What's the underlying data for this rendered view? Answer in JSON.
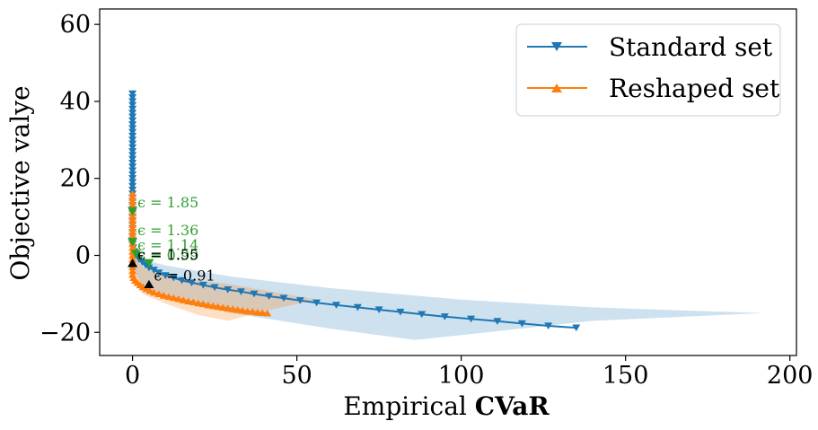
{
  "chart_data": {
    "type": "line",
    "xlabel_prefix": "Empirical",
    "xlabel_bold": "CVaR",
    "ylabel": "Objective valye",
    "xlim": [
      -10,
      202
    ],
    "ylim": [
      -26,
      64
    ],
    "x_ticks": [
      0,
      50,
      100,
      150,
      200
    ],
    "y_ticks": [
      -20,
      0,
      20,
      40,
      60
    ],
    "x_tick_labels": [
      "0",
      "50",
      "100",
      "150",
      "200"
    ],
    "y_tick_labels": [
      "−20",
      "0",
      "20",
      "40",
      "60"
    ],
    "grid": false,
    "legend_position": "top-right",
    "colors": {
      "standard": "#1f77b4",
      "reshaped": "#ff7f0e",
      "green": "#2ca02c",
      "black": "#000000"
    },
    "series": [
      {
        "name": "Standard set",
        "marker": "triangle-down",
        "x": [
          0,
          0,
          0,
          0,
          0,
          0,
          0,
          0,
          0,
          0,
          0,
          0,
          0,
          0,
          0,
          0,
          0,
          0,
          0,
          0,
          0,
          0,
          0,
          0,
          0,
          0,
          0,
          0,
          0,
          0,
          0,
          0,
          0,
          0,
          0,
          0,
          0,
          0,
          0,
          0,
          0.2,
          0.6,
          1.2,
          2,
          3,
          4,
          5,
          6.5,
          8,
          10,
          12.5,
          15,
          18,
          21.5,
          25,
          29,
          33,
          37,
          41.5,
          46,
          51,
          56,
          62,
          68.5,
          75,
          81.5,
          88,
          95,
          103,
          111,
          118.5,
          126.5,
          135
        ],
        "y": [
          42,
          41,
          40,
          39,
          38,
          37,
          36,
          35,
          34,
          33,
          32,
          31,
          30,
          29,
          28,
          27,
          26,
          25,
          24,
          23,
          22,
          21,
          20,
          19,
          18,
          17,
          16,
          15,
          14,
          13,
          12,
          11,
          10,
          9,
          8,
          7,
          6,
          5,
          4,
          3,
          2,
          1,
          0,
          -1,
          -1.8,
          -2.5,
          -3.2,
          -3.8,
          -4.5,
          -5.2,
          -5.8,
          -6.5,
          -7.1,
          -7.7,
          -8.3,
          -8.9,
          -9.4,
          -10,
          -10.6,
          -11.1,
          -11.7,
          -12.3,
          -12.9,
          -13.5,
          -14.1,
          -14.7,
          -15.3,
          -15.9,
          -16.5,
          -17.1,
          -17.7,
          -18.3,
          -18.8
        ]
      },
      {
        "name": "Reshaped set",
        "marker": "triangle-up",
        "x": [
          0,
          0,
          0,
          0,
          0,
          0,
          0,
          0,
          0,
          0,
          0,
          0,
          0,
          0,
          0,
          0,
          0,
          0,
          0,
          0,
          0,
          0,
          0.3,
          0.8,
          1.5,
          2.3,
          3.2,
          4.2,
          5.3,
          6.5,
          8,
          9.5,
          11,
          12.5,
          14,
          15.5,
          17,
          18.5,
          20,
          21.5,
          23,
          24.5,
          26,
          27.5,
          29,
          30.5,
          32,
          33.5,
          35,
          36.5,
          38,
          39.5,
          41
        ],
        "y": [
          16,
          15,
          14,
          13,
          12,
          11,
          10,
          9,
          8,
          7,
          6,
          5,
          4,
          3,
          2,
          1,
          0,
          -1,
          -2,
          -3,
          -4,
          -5,
          -5.8,
          -6.5,
          -7.1,
          -7.7,
          -8.2,
          -8.7,
          -9.2,
          -9.6,
          -10,
          -10.4,
          -10.7,
          -11,
          -11.3,
          -11.6,
          -11.9,
          -12.1,
          -12.4,
          -12.6,
          -12.9,
          -13.1,
          -13.3,
          -13.5,
          -13.7,
          -13.9,
          -14.1,
          -14.3,
          -14.5,
          -14.6,
          -14.8,
          -14.9,
          -15
        ]
      }
    ],
    "bands": [
      {
        "series": "Standard set",
        "x": [
          0,
          0,
          0.3,
          1,
          3,
          10,
          30,
          60,
          100,
          140,
          192,
          140,
          86,
          60,
          30,
          10,
          3,
          1,
          0.3,
          0
        ],
        "y": [
          60,
          40,
          10,
          2,
          -1,
          -2.6,
          -5.5,
          -8.5,
          -11.5,
          -13.5,
          -15,
          -17,
          -22,
          -19,
          -15,
          -11,
          -8,
          -5,
          -2,
          0
        ]
      },
      {
        "series": "Reshaped set",
        "x": [
          0,
          0,
          0.3,
          1,
          3,
          10,
          30,
          56,
          40,
          29,
          20,
          10,
          3,
          1,
          0.3,
          0
        ],
        "y": [
          17,
          12,
          5,
          0,
          -3,
          -5.5,
          -7.5,
          -11.5,
          -14.5,
          -17,
          -15.5,
          -12.5,
          -10,
          -7,
          -4,
          -1
        ]
      }
    ],
    "markers": [
      {
        "label": "ϵ = 1.85",
        "x": 0,
        "y": 11.5,
        "color": "green",
        "shape": "triangle-down"
      },
      {
        "label": "ϵ = 1.36",
        "x": 0,
        "y": 3.5,
        "color": "green",
        "shape": "triangle-down"
      },
      {
        "label": "ϵ = 1.14",
        "x": 1,
        "y": 0.4,
        "color": "green",
        "shape": "triangle-down"
      },
      {
        "label": "ϵ = 0.99",
        "x": 5,
        "y": -2,
        "color": "green",
        "shape": "triangle-down"
      },
      {
        "label": "ϵ = 1.55",
        "x": 0,
        "y": -2,
        "color": "black",
        "shape": "triangle-up"
      },
      {
        "label": "ϵ = 0.91",
        "x": 5,
        "y": -7.5,
        "color": "black",
        "shape": "triangle-up"
      }
    ],
    "annotations": [
      {
        "text": "ϵ = 1.85",
        "x": 1.5,
        "y": 12.5,
        "color": "green"
      },
      {
        "text": "ϵ = 1.36",
        "x": 1.5,
        "y": 5.2,
        "color": "green"
      },
      {
        "text": "ϵ = 1.14",
        "x": 1.5,
        "y": 1.4,
        "color": "green"
      },
      {
        "text": "ϵ = 0.99",
        "x": 1.5,
        "y": -1.3,
        "color": "green"
      },
      {
        "text": "ϵ = 1.55",
        "x": 1.5,
        "y": -1.0,
        "color": "black"
      },
      {
        "text": "ϵ = 0.91",
        "x": 6.5,
        "y": -6.5,
        "color": "black"
      }
    ]
  }
}
